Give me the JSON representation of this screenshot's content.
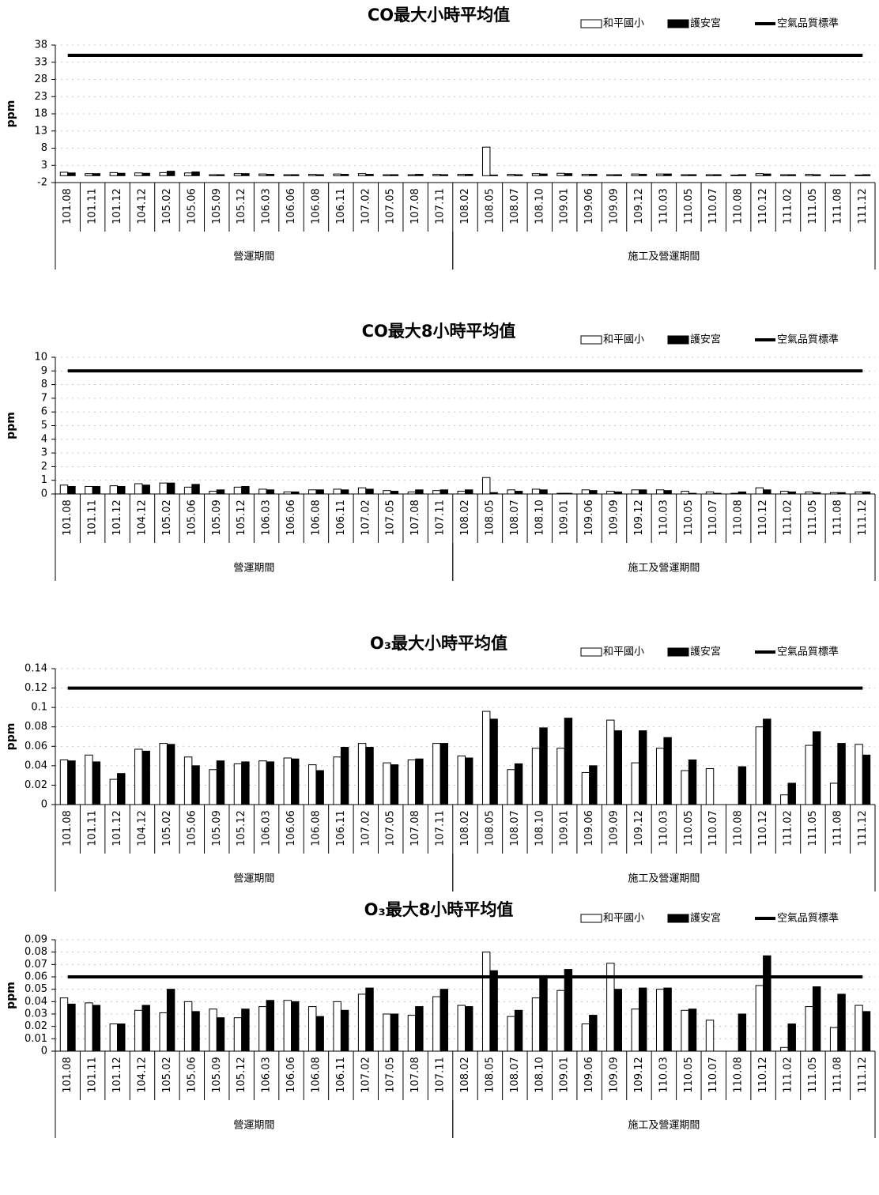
{
  "chart_data": [
    {
      "type": "bar",
      "title": "CO最大小時平均值",
      "y_label": "ppm",
      "categories": [
        "101.08",
        "101.11",
        "101.12",
        "104.12",
        "105.02",
        "105.06",
        "105.09",
        "105.12",
        "106.03",
        "106.06",
        "106.08",
        "106.11",
        "107.02",
        "107.05",
        "107.08",
        "107.11",
        "108.02",
        "108.05",
        "108.07",
        "108.10",
        "109.01",
        "109.06",
        "109.09",
        "109.12",
        "110.03",
        "110.05",
        "110.07",
        "110.08",
        "110.12",
        "111.02",
        "111.05",
        "111.08",
        "111.12"
      ],
      "category_groups": [
        {
          "name": "營運期間",
          "count": 16
        },
        {
          "name": "施工及營運期間",
          "count": 17
        }
      ],
      "series": [
        {
          "name": "和平國小",
          "mark": "bar",
          "color": "#ffffff",
          "edgecolor": "#000000",
          "values": [
            1.0,
            0.6,
            0.9,
            0.8,
            0.9,
            0.8,
            0.3,
            0.6,
            0.5,
            0.3,
            0.4,
            0.5,
            0.6,
            0.3,
            0.3,
            0.4,
            0.4,
            8.3,
            0.4,
            0.6,
            0.7,
            0.4,
            0.3,
            0.5,
            0.5,
            0.3,
            0.3,
            0.2,
            0.6,
            0.3,
            0.4,
            0.2,
            0.2
          ]
        },
        {
          "name": "護安宮",
          "mark": "bar",
          "color": "#000000",
          "edgecolor": "#000000",
          "values": [
            0.8,
            0.6,
            0.7,
            0.7,
            1.3,
            1.1,
            0.3,
            0.6,
            0.4,
            0.3,
            0.3,
            0.4,
            0.4,
            0.3,
            0.4,
            0.3,
            0.4,
            0.2,
            0.3,
            0.5,
            0.6,
            0.4,
            0.3,
            0.4,
            0.5,
            0.3,
            0.3,
            0.3,
            0.5,
            0.3,
            0.3,
            0.2,
            0.3
          ]
        },
        {
          "name": "空氣品質標準",
          "mark": "line",
          "color": "#000000",
          "values": [
            35,
            35,
            35,
            35,
            35,
            35,
            35,
            35,
            35,
            35,
            35,
            35,
            35,
            35,
            35,
            35,
            35,
            35,
            35,
            35,
            35,
            35,
            35,
            35,
            35,
            35,
            35,
            35,
            35,
            35,
            35,
            35,
            35
          ]
        }
      ],
      "ylim": [
        -2,
        38
      ],
      "yticks": [
        -2,
        3,
        8,
        13,
        18,
        23,
        28,
        33,
        38
      ],
      "grid": true,
      "legend": "upper right"
    },
    {
      "type": "bar",
      "title": "CO最大8小時平均值",
      "y_label": "ppm",
      "categories": [
        "101.08",
        "101.11",
        "101.12",
        "104.12",
        "105.02",
        "105.06",
        "105.09",
        "105.12",
        "106.03",
        "106.06",
        "106.08",
        "106.11",
        "107.02",
        "107.05",
        "107.08",
        "107.11",
        "108.02",
        "108.05",
        "108.07",
        "108.10",
        "109.01",
        "109.06",
        "109.09",
        "109.12",
        "110.03",
        "110.05",
        "110.07",
        "110.08",
        "110.12",
        "111.02",
        "111.05",
        "111.08",
        "111.12"
      ],
      "category_groups": [
        {
          "name": "營運期間",
          "count": 16
        },
        {
          "name": "施工及營運期間",
          "count": 17
        }
      ],
      "series": [
        {
          "name": "和平國小",
          "mark": "bar",
          "color": "#ffffff",
          "edgecolor": "#000000",
          "values": [
            0.65,
            0.55,
            0.6,
            0.75,
            0.8,
            0.5,
            0.2,
            0.5,
            0.35,
            0.15,
            0.3,
            0.35,
            0.45,
            0.25,
            0.15,
            0.25,
            0.2,
            1.2,
            0.3,
            0.35,
            0.05,
            0.3,
            0.2,
            0.3,
            0.3,
            0.2,
            0.15,
            0.05,
            0.45,
            0.2,
            0.15,
            0.1,
            0.15
          ]
        },
        {
          "name": "護安宮",
          "mark": "bar",
          "color": "#000000",
          "edgecolor": "#000000",
          "values": [
            0.55,
            0.55,
            0.55,
            0.65,
            0.8,
            0.7,
            0.3,
            0.55,
            0.3,
            0.15,
            0.3,
            0.3,
            0.35,
            0.2,
            0.3,
            0.3,
            0.3,
            0.1,
            0.2,
            0.3,
            0.05,
            0.25,
            0.15,
            0.3,
            0.25,
            0.05,
            0.05,
            0.15,
            0.3,
            0.15,
            0.1,
            0.1,
            0.15
          ]
        },
        {
          "name": "空氣品質標準",
          "mark": "line",
          "color": "#000000",
          "values": [
            9,
            9,
            9,
            9,
            9,
            9,
            9,
            9,
            9,
            9,
            9,
            9,
            9,
            9,
            9,
            9,
            9,
            9,
            9,
            9,
            9,
            9,
            9,
            9,
            9,
            9,
            9,
            9,
            9,
            9,
            9,
            9,
            9
          ]
        }
      ],
      "ylim": [
        0,
        10
      ],
      "yticks": [
        0,
        1,
        2,
        3,
        4,
        5,
        6,
        7,
        8,
        9,
        10
      ],
      "grid": true,
      "legend": "upper right"
    },
    {
      "type": "bar",
      "title": "O₃最大小時平均值",
      "y_label": "ppm",
      "categories": [
        "101.08",
        "101.11",
        "101.12",
        "104.12",
        "105.02",
        "105.06",
        "105.09",
        "105.12",
        "106.03",
        "106.06",
        "106.08",
        "106.11",
        "107.02",
        "107.05",
        "107.08",
        "107.11",
        "108.02",
        "108.05",
        "108.07",
        "108.10",
        "109.01",
        "109.06",
        "109.09",
        "109.12",
        "110.03",
        "110.05",
        "110.07",
        "110.08",
        "110.12",
        "111.02",
        "111.05",
        "111.08",
        "111.12"
      ],
      "category_groups": [
        {
          "name": "營運期間",
          "count": 16
        },
        {
          "name": "施工及營運期間",
          "count": 17
        }
      ],
      "series": [
        {
          "name": "和平國小",
          "mark": "bar",
          "color": "#ffffff",
          "edgecolor": "#000000",
          "values": [
            0.046,
            0.051,
            0.026,
            0.057,
            0.063,
            0.049,
            0.036,
            0.042,
            0.045,
            0.048,
            0.041,
            0.049,
            0.063,
            0.043,
            0.046,
            0.063,
            0.05,
            0.096,
            0.036,
            0.058,
            0.058,
            0.033,
            0.087,
            0.043,
            0.058,
            0.035,
            0.037,
            null,
            0.08,
            0.01,
            0.061,
            0.022,
            0.062
          ]
        },
        {
          "name": "護安宮",
          "mark": "bar",
          "color": "#000000",
          "edgecolor": "#000000",
          "values": [
            0.045,
            0.044,
            0.032,
            0.055,
            0.062,
            0.04,
            0.045,
            0.044,
            0.044,
            0.047,
            0.035,
            0.059,
            0.059,
            0.041,
            0.047,
            0.063,
            0.048,
            0.088,
            0.042,
            0.079,
            0.089,
            0.04,
            0.076,
            0.076,
            0.069,
            0.046,
            null,
            0.039,
            0.088,
            0.022,
            0.075,
            0.063,
            0.051
          ]
        },
        {
          "name": "空氣品質標準",
          "mark": "line",
          "color": "#000000",
          "values": [
            0.12,
            0.12,
            0.12,
            0.12,
            0.12,
            0.12,
            0.12,
            0.12,
            0.12,
            0.12,
            0.12,
            0.12,
            0.12,
            0.12,
            0.12,
            0.12,
            0.12,
            0.12,
            0.12,
            0.12,
            0.12,
            0.12,
            0.12,
            0.12,
            0.12,
            0.12,
            0.12,
            0.12,
            0.12,
            0.12,
            0.12,
            0.12,
            0.12
          ]
        }
      ],
      "ylim": [
        0,
        0.14
      ],
      "yticks": [
        0,
        0.02,
        0.04,
        0.06,
        0.08,
        0.1,
        0.12,
        0.14
      ],
      "grid": true,
      "legend": "upper right"
    },
    {
      "type": "bar",
      "title": "O₃最大8小時平均值",
      "y_label": "ppm",
      "categories": [
        "101.08",
        "101.11",
        "101.12",
        "104.12",
        "105.02",
        "105.06",
        "105.09",
        "105.12",
        "106.03",
        "106.06",
        "106.08",
        "106.11",
        "107.02",
        "107.05",
        "107.08",
        "107.11",
        "108.02",
        "108.05",
        "108.07",
        "108.10",
        "109.01",
        "109.06",
        "109.09",
        "109.12",
        "110.03",
        "110.05",
        "110.07",
        "110.08",
        "110.12",
        "111.02",
        "111.05",
        "111.08",
        "111.12"
      ],
      "category_groups": [
        {
          "name": "營運期間",
          "count": 16
        },
        {
          "name": "施工及營運期間",
          "count": 17
        }
      ],
      "series": [
        {
          "name": "和平國小",
          "mark": "bar",
          "color": "#ffffff",
          "edgecolor": "#000000",
          "values": [
            0.043,
            0.039,
            0.022,
            0.033,
            0.031,
            0.04,
            0.034,
            0.027,
            0.036,
            0.041,
            0.036,
            0.04,
            0.046,
            0.03,
            0.029,
            0.044,
            0.037,
            0.08,
            0.028,
            0.043,
            0.049,
            0.022,
            0.071,
            0.034,
            0.05,
            0.033,
            0.025,
            null,
            0.053,
            0.003,
            0.036,
            0.019,
            0.037
          ]
        },
        {
          "name": "護安宮",
          "mark": "bar",
          "color": "#000000",
          "edgecolor": "#000000",
          "values": [
            0.038,
            0.037,
            0.022,
            0.037,
            0.05,
            0.032,
            0.027,
            0.034,
            0.041,
            0.04,
            0.028,
            0.033,
            0.051,
            0.03,
            0.036,
            0.05,
            0.036,
            0.065,
            0.033,
            0.061,
            0.066,
            0.029,
            0.05,
            0.051,
            0.051,
            0.034,
            null,
            0.03,
            0.077,
            0.022,
            0.052,
            0.046,
            0.032
          ]
        },
        {
          "name": "空氣品質標準",
          "mark": "line",
          "color": "#000000",
          "values": [
            0.06,
            0.06,
            0.06,
            0.06,
            0.06,
            0.06,
            0.06,
            0.06,
            0.06,
            0.06,
            0.06,
            0.06,
            0.06,
            0.06,
            0.06,
            0.06,
            0.06,
            0.06,
            0.06,
            0.06,
            0.06,
            0.06,
            0.06,
            0.06,
            0.06,
            0.06,
            0.06,
            0.06,
            0.06,
            0.06,
            0.06,
            0.06,
            0.06
          ]
        }
      ],
      "ylim": [
        0,
        0.09
      ],
      "yticks": [
        0,
        0.01,
        0.02,
        0.03,
        0.04,
        0.05,
        0.06,
        0.07,
        0.08,
        0.09
      ],
      "grid": true,
      "legend": "upper right"
    }
  ]
}
